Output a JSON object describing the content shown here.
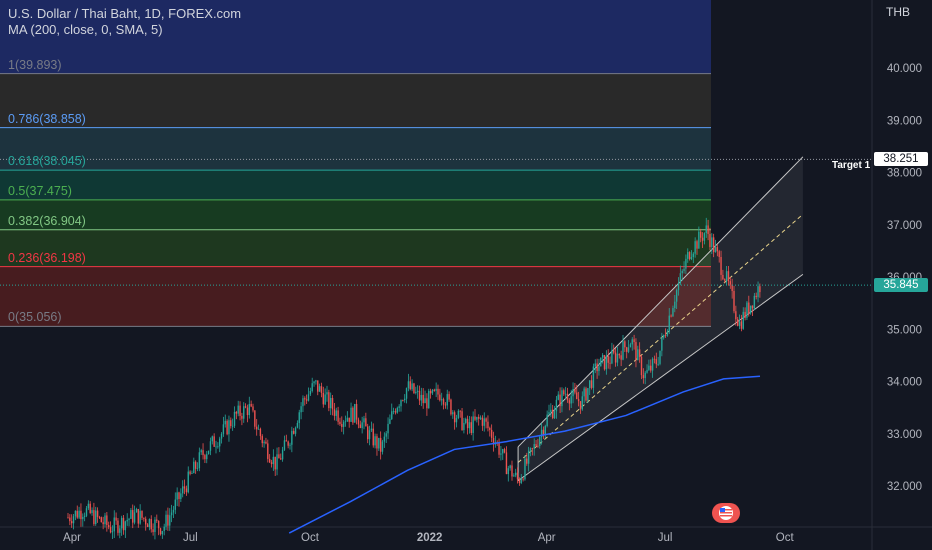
{
  "header": {
    "title": "U.S. Dollar / Thai Baht, 1D, FOREX.com",
    "indicator": "MA (200, close, 0, SMA, 5)"
  },
  "axis_unit": "THB",
  "target_label": "Target 1",
  "price_tags": {
    "target": "38.251",
    "last": "35.845"
  },
  "colors": {
    "background": "#131722",
    "up": "#26a69a",
    "down": "#ef5350",
    "ma": "#2962ff",
    "last_tag": "#26a69a"
  },
  "chart_data": {
    "type": "candlestick",
    "title": "U.S. Dollar / Thai Baht, 1D, FOREX.com",
    "ylabel": "THB",
    "ylim": [
      31.35,
      41.15
    ],
    "x_tick_labels": [
      "Apr",
      "Jul",
      "Oct",
      "2022",
      "Apr",
      "Jul",
      "Oct"
    ],
    "y_tick_labels": [
      "32.000",
      "33.000",
      "34.000",
      "35.000",
      "36.000",
      "37.000",
      "38.000",
      "39.000",
      "40.000"
    ],
    "y_ticks": [
      32,
      33,
      34,
      35,
      36,
      37,
      38,
      39,
      40
    ],
    "fib_levels": [
      {
        "label": "1(39.893)",
        "level": 1,
        "price": 39.893,
        "color": "#787b86"
      },
      {
        "label": "0.786(38.858)",
        "level": 0.786,
        "price": 38.858,
        "color": "#5b9cf6"
      },
      {
        "label": "0.618(38.045)",
        "level": 0.618,
        "price": 38.045,
        "color": "#26a69a"
      },
      {
        "label": "0.5(37.475)",
        "level": 0.5,
        "price": 37.475,
        "color": "#4caf50"
      },
      {
        "label": "0.382(36.904)",
        "level": 0.382,
        "price": 36.904,
        "color": "#81c784"
      },
      {
        "label": "0.236(36.198)",
        "level": 0.236,
        "price": 36.198,
        "color": "#f23645"
      },
      {
        "label": "0(35.056)",
        "level": 0,
        "price": 35.056,
        "color": "#787b86"
      }
    ],
    "price_anchors": [
      [
        "2021-03-01",
        31.0
      ],
      [
        "2021-03-25",
        31.35
      ],
      [
        "2021-04-10",
        31.55
      ],
      [
        "2021-05-01",
        31.2
      ],
      [
        "2021-05-20",
        31.45
      ],
      [
        "2021-06-10",
        31.2
      ],
      [
        "2021-06-25",
        31.9
      ],
      [
        "2021-07-10",
        32.6
      ],
      [
        "2021-07-25",
        33.0
      ],
      [
        "2021-08-05",
        33.35
      ],
      [
        "2021-08-15",
        33.5
      ],
      [
        "2021-08-25",
        32.9
      ],
      [
        "2021-09-05",
        32.4
      ],
      [
        "2021-09-15",
        32.9
      ],
      [
        "2021-09-25",
        33.6
      ],
      [
        "2021-10-05",
        33.95
      ],
      [
        "2021-10-15",
        33.6
      ],
      [
        "2021-10-25",
        33.3
      ],
      [
        "2021-11-05",
        33.4
      ],
      [
        "2021-11-15",
        33.0
      ],
      [
        "2021-11-25",
        32.7
      ],
      [
        "2021-12-05",
        33.5
      ],
      [
        "2021-12-15",
        33.9
      ],
      [
        "2021-12-28",
        33.6
      ],
      [
        "2022-01-10",
        33.8
      ],
      [
        "2022-01-20",
        33.4
      ],
      [
        "2022-01-30",
        33.1
      ],
      [
        "2022-02-10",
        33.3
      ],
      [
        "2022-02-20",
        32.9
      ],
      [
        "2022-03-01",
        32.4
      ],
      [
        "2022-03-10",
        32.1
      ],
      [
        "2022-03-20",
        32.6
      ],
      [
        "2022-04-01",
        33.3
      ],
      [
        "2022-04-15",
        33.8
      ],
      [
        "2022-04-28",
        33.6
      ],
      [
        "2022-05-10",
        34.3
      ],
      [
        "2022-05-25",
        34.5
      ],
      [
        "2022-06-05",
        34.8
      ],
      [
        "2022-06-15",
        34.1
      ],
      [
        "2022-06-25",
        34.4
      ],
      [
        "2022-07-08",
        35.6
      ],
      [
        "2022-07-20",
        36.5
      ],
      [
        "2022-08-02",
        36.9
      ],
      [
        "2022-08-10",
        36.4
      ],
      [
        "2022-08-18",
        35.9
      ],
      [
        "2022-08-27",
        35.1
      ],
      [
        "2022-09-05",
        35.5
      ],
      [
        "2022-09-12",
        35.85
      ]
    ],
    "ma_200": [
      [
        "2021-09-15",
        31.1
      ],
      [
        "2021-11-01",
        31.7
      ],
      [
        "2021-12-15",
        32.3
      ],
      [
        "2022-01-20",
        32.7
      ],
      [
        "2022-03-01",
        32.85
      ],
      [
        "2022-04-15",
        33.05
      ],
      [
        "2022-06-01",
        33.35
      ],
      [
        "2022-07-15",
        33.8
      ],
      [
        "2022-08-15",
        34.05
      ],
      [
        "2022-09-12",
        34.1
      ]
    ],
    "regression_channel": {
      "start": "2022-03-10",
      "end": "2022-10-15",
      "upper": [
        32.75,
        38.3
      ],
      "center": [
        32.45,
        37.2
      ],
      "lower": [
        32.1,
        36.05
      ]
    }
  }
}
